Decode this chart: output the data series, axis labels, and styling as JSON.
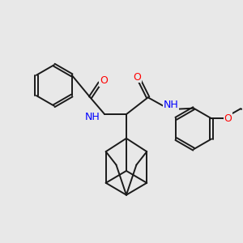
{
  "background_color": "#e8e8e8",
  "bond_color": "#1a1a1a",
  "atom_colors": {
    "N": "#0000ff",
    "O": "#ff0000",
    "C": "#1a1a1a"
  },
  "font_size_atom": 9,
  "font_size_H": 8,
  "lw": 1.4
}
